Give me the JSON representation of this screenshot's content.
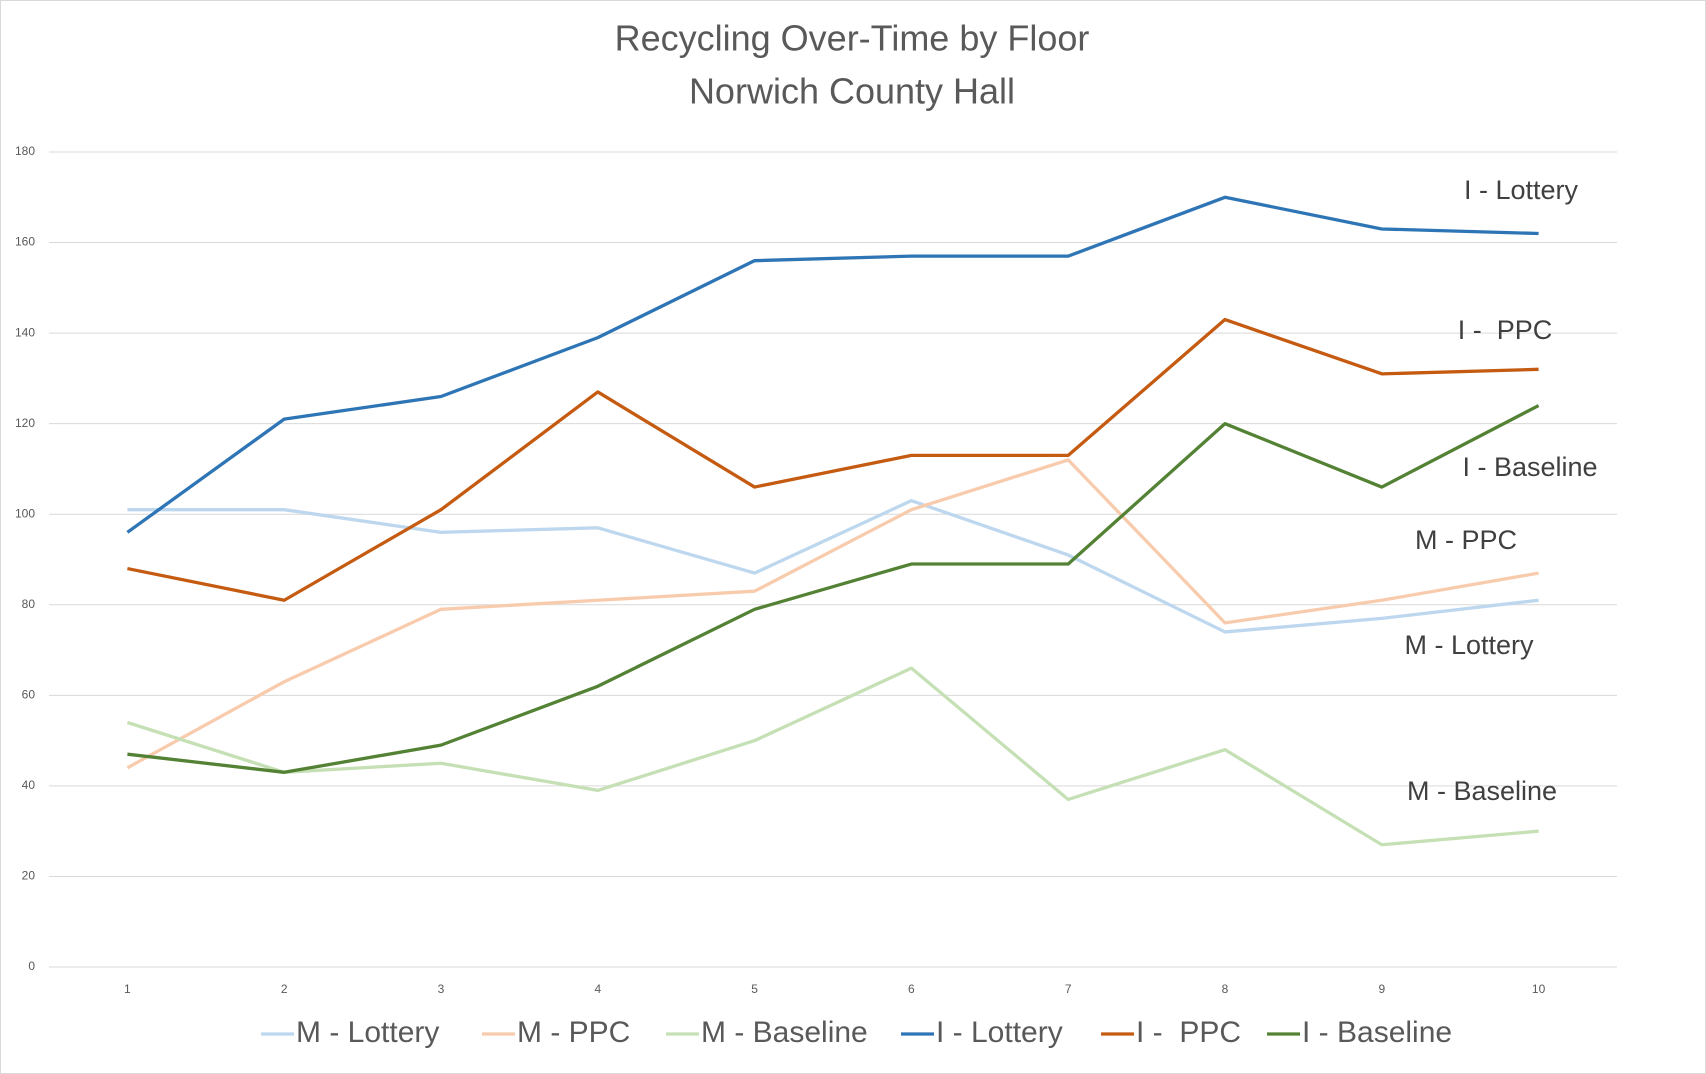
{
  "chart_data": {
    "type": "line",
    "title": "Recycling Over-Time by Floor",
    "subtitle": "Norwich County Hall",
    "categories": [
      "1",
      "2",
      "3",
      "4",
      "5",
      "6",
      "7",
      "8",
      "9",
      "10"
    ],
    "ylim": [
      0,
      180
    ],
    "yticks": [
      0,
      20,
      40,
      60,
      80,
      100,
      120,
      140,
      160,
      180
    ],
    "grid": true,
    "legend": "bottom",
    "series": [
      {
        "name": "M - Lottery",
        "color": "#bdd7ee",
        "values": [
          101,
          101,
          96,
          97,
          87,
          103,
          91,
          74,
          77,
          81
        ]
      },
      {
        "name": "M - PPC",
        "color": "#f8cbad",
        "values": [
          44,
          63,
          79,
          81,
          83,
          101,
          112,
          76,
          81,
          87
        ]
      },
      {
        "name": "M - Baseline",
        "color": "#c5e0b4",
        "values": [
          54,
          43,
          45,
          39,
          50,
          66,
          37,
          48,
          27,
          30
        ]
      },
      {
        "name": "I - Lottery",
        "color": "#2e75b6",
        "values": [
          96,
          121,
          126,
          139,
          156,
          157,
          157,
          170,
          163,
          162
        ]
      },
      {
        "name": "I -  PPC",
        "color": "#c55a11",
        "values": [
          88,
          81,
          101,
          127,
          106,
          113,
          113,
          143,
          131,
          132
        ]
      },
      {
        "name": "I - Baseline",
        "color": "#548235",
        "values": [
          47,
          43,
          49,
          62,
          79,
          89,
          89,
          120,
          106,
          124
        ]
      }
    ],
    "annotations": [
      "I - Lottery",
      "I -  PPC",
      "I - Baseline",
      "M - PPC",
      "M - Lottery",
      "M - Baseline"
    ]
  }
}
